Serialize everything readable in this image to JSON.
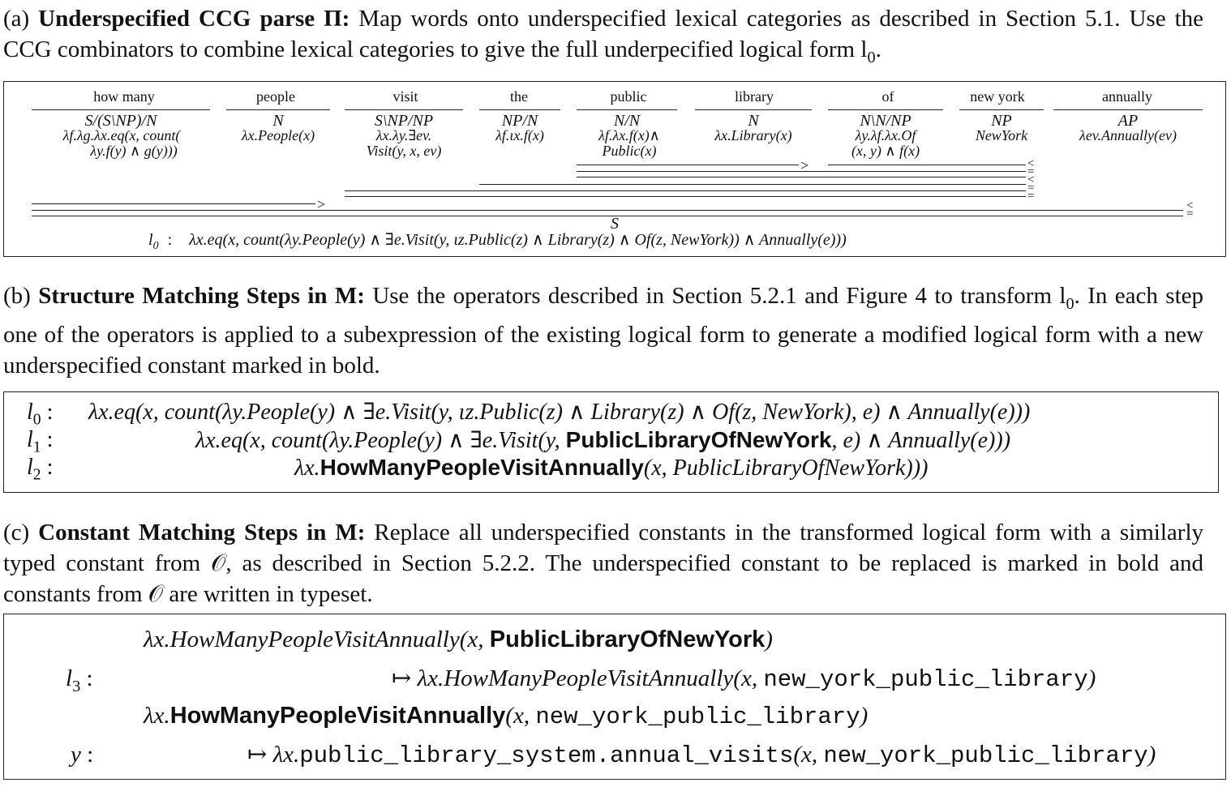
{
  "section_a": {
    "label": "(a)",
    "title": "Underspecified CCG parse Π:",
    "text": "Map words onto underspecified lexical categories as described in Section 5.1. Use the CCG combinators to combine lexical categories to give the full underpecified logical form l",
    "text_sub": "0",
    "text_end": ".",
    "words": [
      "how many",
      "people",
      "visit",
      "the",
      "public",
      "library",
      "of",
      "new york",
      "annually"
    ],
    "categories": [
      "S/(S\\NP)/N",
      "N",
      "S\\NP/NP",
      "NP/N",
      "N/N",
      "N",
      "N\\N/NP",
      "NP",
      "AP"
    ],
    "semantics": [
      [
        "λf.λg.λx.eq(x, count(",
        "λy.f(y) ∧ g(y)))"
      ],
      [
        "λx.People(x)"
      ],
      [
        "λx.λy.∃ev.",
        "Visit(y, x, ev)"
      ],
      [
        "λf.ιx.f(x)"
      ],
      [
        "λf.λx.f(x)∧",
        "Public(x)"
      ],
      [
        "λx.Library(x)"
      ],
      [
        "λy.λf.λx.Of",
        "(x, y) ∧ f(x)"
      ],
      [
        "NewYork"
      ],
      [
        "λev.Annually(ev)"
      ]
    ],
    "rule_fwd": ">",
    "rule_bwd": "<",
    "result_cat": "S",
    "lf_label": "l",
    "lf_label_sub": "0",
    "lf_colon": ":",
    "lf": "λx.eq(x, count(λy.People(y) ∧ ∃e.Visit(y, ιz.Public(z) ∧ Library(z) ∧ Of(z, NewYork)) ∧ Annually(e)))"
  },
  "section_b": {
    "label": "(b)",
    "title": "Structure Matching Steps in M:",
    "text": "Use the operators described in Section 5.2.1 and Figure 4 to transform l",
    "text_sub": "0",
    "text_end": ". In each step one of the operators is applied to a subexpression of the existing logical form to generate a modified logical form with a new underspecified constant marked in bold.",
    "rows": [
      {
        "label": "l",
        "sub": "0",
        "pre": "λx.eq(x, count(λy.People(y) ∧ ∃e.Visit(y, ιz.Public(z) ∧ Library(z) ∧ Of(z, NewYork), e) ∧ Annually(e)))",
        "bold": "",
        "post": ""
      },
      {
        "label": "l",
        "sub": "1",
        "pre": "λx.eq(x, count(λy.People(y) ∧ ∃e.Visit(y, ",
        "bold": "PublicLibraryOfNewYork",
        "post": ", e) ∧ Annually(e)))"
      },
      {
        "label": "l",
        "sub": "2",
        "pre": "λx.",
        "bold": "HowManyPeopleVisitAnnually",
        "post": "(x, PublicLibraryOfNewYork)))"
      }
    ]
  },
  "section_c": {
    "label": "(c)",
    "title": "Constant Matching Steps in M:",
    "text": "Replace all underspecified constants in the transformed logical form with a similarly typed constant from 𝒪, as described in Section 5.2.2. The underspecified constant to be replaced is marked in bold and constants from 𝒪 are written in typeset.",
    "rows": [
      {
        "pre": "λx.HowManyPeopleVisitAnnually(x, ",
        "bold": "PublicLibraryOfNewYork",
        "post": ")"
      },
      {
        "arrow": "↦",
        "pre": "λx.HowManyPeopleVisitAnnually(x, ",
        "mono": "new_york_public_library",
        "post": ")"
      },
      {
        "pre": "λx.",
        "bold": "HowManyPeopleVisitAnnually",
        "mid": "(x, ",
        "mono": "new_york_public_library",
        "post": ")"
      },
      {
        "arrow": "↦",
        "pre": "λx.",
        "mono": "public_library_system.annual_visits",
        "mid": "(x, ",
        "mono2": "new_york_public_library",
        "post": ")"
      }
    ],
    "label_l3": "l",
    "label_l3_sub": "3",
    "label_y": "y",
    "colon": ":"
  }
}
